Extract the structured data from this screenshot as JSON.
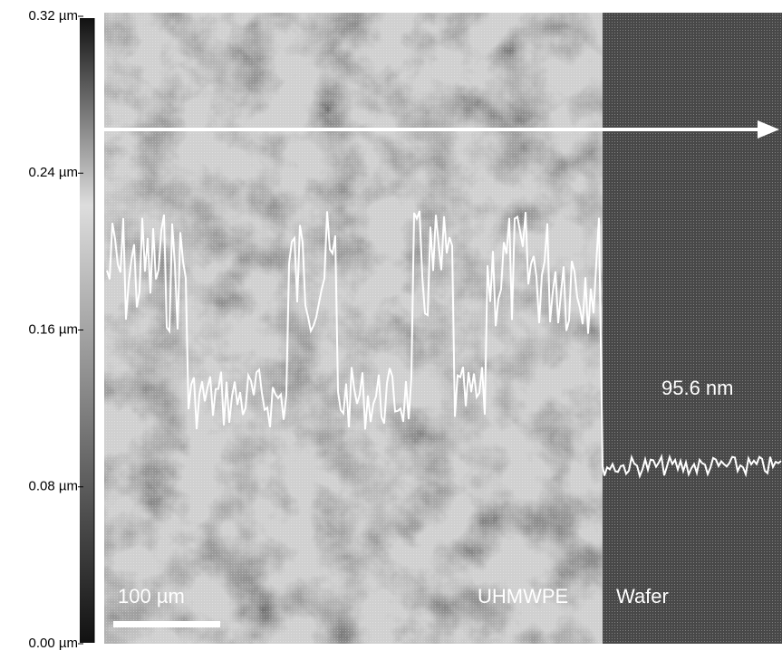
{
  "height_scale": {
    "labels": [
      "0.32 µm",
      "0.24 µm",
      "0.16 µm",
      "0.08 µm",
      "0.00 µm"
    ]
  },
  "annotations": {
    "scale_bar": "100 µm",
    "left_material": "UHMWPE",
    "right_material": "Wafer",
    "step_height": "95.6 nm"
  }
}
